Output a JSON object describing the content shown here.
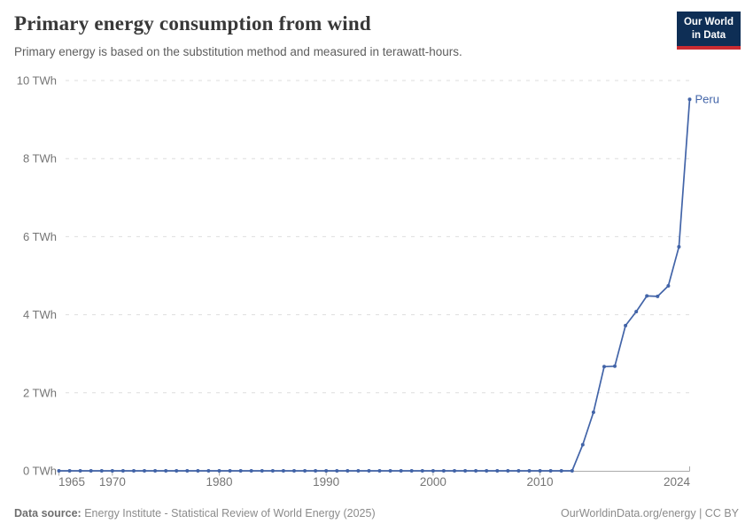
{
  "header": {
    "title": "Primary energy consumption from wind",
    "subtitle": "Primary energy is based on the substitution method and measured in terawatt-hours."
  },
  "logo": {
    "line1": "Our World",
    "line2": "in Data",
    "bg_color": "#0e2e55",
    "accent_color": "#ca2b31"
  },
  "footer": {
    "source_label": "Data source:",
    "source_value": "Energy Institute - Statistical Review of World Energy (2025)",
    "credit": "OurWorldinData.org/energy | CC BY"
  },
  "chart_data": {
    "type": "line",
    "title": "Primary energy consumption from wind",
    "subtitle": "Primary energy is based on the substitution method and measured in terawatt-hours.",
    "ylabel": "",
    "xlabel": "",
    "grid": "horizontal-dashed",
    "legend_position": "end-of-line-label",
    "xlim": [
      1965,
      2024
    ],
    "ylim": [
      0,
      10
    ],
    "xticks": [
      1965,
      1970,
      1980,
      1990,
      2000,
      2010,
      2024
    ],
    "yticks": [
      {
        "value": 0,
        "label": "0 TWh"
      },
      {
        "value": 2,
        "label": "2 TWh"
      },
      {
        "value": 4,
        "label": "4 TWh"
      },
      {
        "value": 6,
        "label": "6 TWh"
      },
      {
        "value": 8,
        "label": "8 TWh"
      },
      {
        "value": 10,
        "label": "10 TWh"
      }
    ],
    "series": [
      {
        "name": "Peru",
        "color": "#4264a8",
        "years": [
          1965,
          1966,
          1967,
          1968,
          1969,
          1970,
          1971,
          1972,
          1973,
          1974,
          1975,
          1976,
          1977,
          1978,
          1979,
          1980,
          1981,
          1982,
          1983,
          1984,
          1985,
          1986,
          1987,
          1988,
          1989,
          1990,
          1991,
          1992,
          1993,
          1994,
          1995,
          1996,
          1997,
          1998,
          1999,
          2000,
          2001,
          2002,
          2003,
          2004,
          2005,
          2006,
          2007,
          2008,
          2009,
          2010,
          2011,
          2012,
          2013,
          2014,
          2015,
          2016,
          2017,
          2018,
          2019,
          2020,
          2021,
          2022,
          2023,
          2024
        ],
        "values": [
          0,
          0,
          0,
          0,
          0,
          0,
          0,
          0,
          0,
          0,
          0,
          0,
          0,
          0,
          0,
          0,
          0,
          0,
          0,
          0,
          0,
          0,
          0,
          0,
          0,
          0,
          0,
          0,
          0,
          0,
          0,
          0,
          0,
          0,
          0,
          0,
          0,
          0,
          0,
          0,
          0,
          0,
          0,
          0,
          0,
          0,
          0,
          0,
          0,
          0.67,
          1.5,
          2.67,
          2.68,
          3.72,
          4.08,
          4.48,
          4.47,
          4.74,
          5.74,
          9.52
        ]
      }
    ],
    "colors": {
      "gridline": "#dedede",
      "axis": "#ababab",
      "tick_text": "#757575"
    }
  }
}
